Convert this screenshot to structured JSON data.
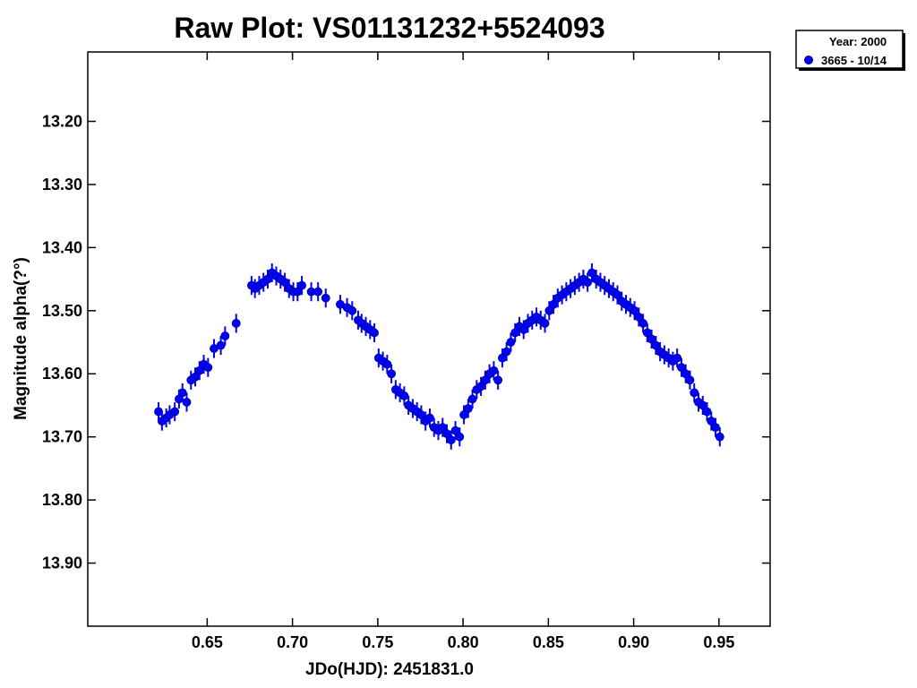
{
  "chart_data": {
    "type": "scatter",
    "title": "Raw Plot: VS01131232+5524093",
    "xlabel": "JDo(HJD): 2451831.0",
    "ylabel": "Magnitude alpha(?°)",
    "xlim": [
      0.58,
      0.98
    ],
    "ylim": [
      14.0,
      13.09
    ],
    "y_inverted": true,
    "grid": false,
    "legend_position": "top-right",
    "legend_title": "Year: 2000",
    "colors": {
      "series": "#0000ff"
    },
    "x_ticks": [
      0.65,
      0.7,
      0.75,
      0.8,
      0.85,
      0.9,
      0.95
    ],
    "x_tick_labels": [
      "0.65",
      "0.70",
      "0.75",
      "0.80",
      "0.85",
      "0.90",
      "0.95"
    ],
    "y_ticks": [
      13.2,
      13.3,
      13.4,
      13.5,
      13.6,
      13.7,
      13.8,
      13.9
    ],
    "y_tick_labels": [
      "13.20",
      "13.30",
      "13.40",
      "13.50",
      "13.60",
      "13.70",
      "13.80",
      "13.90"
    ],
    "series": [
      {
        "name": "3665 - 10/14",
        "error": 0.015,
        "x": [
          0.6215,
          0.6235,
          0.626,
          0.628,
          0.631,
          0.6335,
          0.6355,
          0.638,
          0.6405,
          0.643,
          0.6455,
          0.648,
          0.6505,
          0.654,
          0.658,
          0.6605,
          0.667,
          0.676,
          0.678,
          0.6805,
          0.683,
          0.6855,
          0.688,
          0.6905,
          0.693,
          0.6955,
          0.698,
          0.7005,
          0.703,
          0.7055,
          0.711,
          0.715,
          0.7195,
          0.728,
          0.732,
          0.735,
          0.7385,
          0.7405,
          0.743,
          0.7455,
          0.748,
          0.7505,
          0.753,
          0.7555,
          0.758,
          0.7605,
          0.763,
          0.7655,
          0.768,
          0.7705,
          0.773,
          0.7755,
          0.778,
          0.7805,
          0.783,
          0.7855,
          0.788,
          0.7905,
          0.793,
          0.7955,
          0.798,
          0.8005,
          0.803,
          0.8055,
          0.808,
          0.8105,
          0.813,
          0.8155,
          0.818,
          0.8205,
          0.823,
          0.8255,
          0.828,
          0.8305,
          0.833,
          0.8355,
          0.838,
          0.8405,
          0.843,
          0.8455,
          0.848,
          0.8505,
          0.853,
          0.8555,
          0.858,
          0.8605,
          0.863,
          0.8655,
          0.868,
          0.8705,
          0.873,
          0.8755,
          0.878,
          0.8805,
          0.883,
          0.8855,
          0.888,
          0.8905,
          0.893,
          0.8955,
          0.898,
          0.9005,
          0.903,
          0.9055,
          0.908,
          0.9105,
          0.913,
          0.9155,
          0.918,
          0.9205,
          0.923,
          0.9255,
          0.928,
          0.9305,
          0.933,
          0.9355,
          0.938,
          0.9405,
          0.943,
          0.9455,
          0.948,
          0.9505
        ],
        "y": [
          13.66,
          13.675,
          13.67,
          13.665,
          13.66,
          13.64,
          13.63,
          13.645,
          13.61,
          13.605,
          13.595,
          13.585,
          13.59,
          13.56,
          13.555,
          13.54,
          13.52,
          13.46,
          13.465,
          13.46,
          13.455,
          13.45,
          13.44,
          13.445,
          13.45,
          13.455,
          13.465,
          13.47,
          13.47,
          13.46,
          13.47,
          13.47,
          13.48,
          13.49,
          13.495,
          13.5,
          13.515,
          13.52,
          13.525,
          13.53,
          13.535,
          13.575,
          13.58,
          13.585,
          13.6,
          13.625,
          13.63,
          13.635,
          13.65,
          13.655,
          13.66,
          13.665,
          13.675,
          13.67,
          13.685,
          13.69,
          13.685,
          13.695,
          13.705,
          13.69,
          13.7,
          13.665,
          13.655,
          13.64,
          13.625,
          13.62,
          13.61,
          13.6,
          13.595,
          13.61,
          13.575,
          13.565,
          13.55,
          13.535,
          13.525,
          13.53,
          13.52,
          13.515,
          13.51,
          13.515,
          13.52,
          13.5,
          13.49,
          13.48,
          13.475,
          13.47,
          13.465,
          13.46,
          13.455,
          13.45,
          13.455,
          13.44,
          13.45,
          13.455,
          13.46,
          13.465,
          13.47,
          13.475,
          13.485,
          13.49,
          13.495,
          13.5,
          13.51,
          13.52,
          13.535,
          13.545,
          13.555,
          13.565,
          13.57,
          13.575,
          13.58,
          13.575,
          13.59,
          13.6,
          13.61,
          13.63,
          13.645,
          13.65,
          13.66,
          13.675,
          13.685,
          13.7
        ]
      }
    ]
  }
}
